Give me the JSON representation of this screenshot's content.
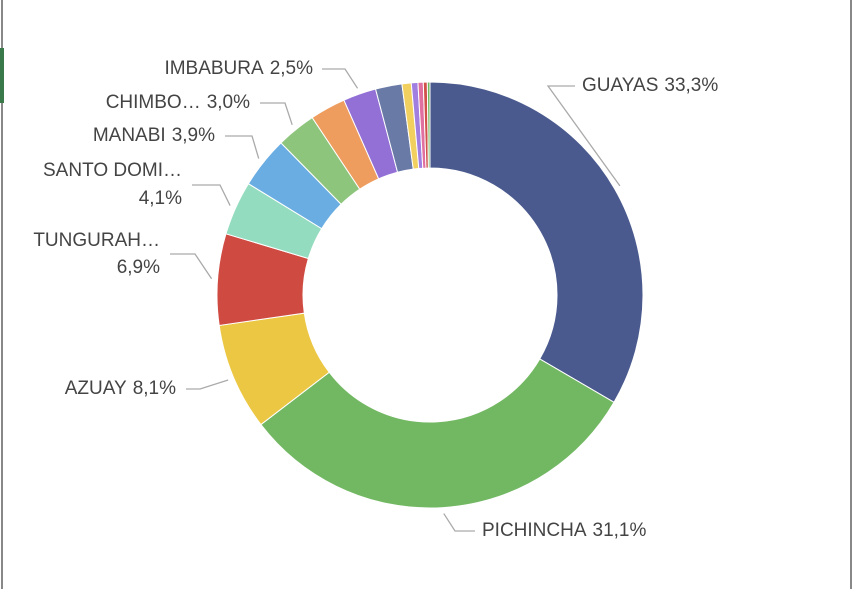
{
  "chart_data": {
    "type": "donut",
    "categories": [
      "GUAYAS",
      "PICHINCHA",
      "AZUAY",
      "TUNGURAH…",
      "SANTO DOMI…",
      "MANABI",
      "CHIMBO…",
      null,
      "IMBABURA",
      null,
      null,
      null,
      null,
      null,
      null
    ],
    "values": [
      33.3,
      31.1,
      8.1,
      6.9,
      4.1,
      3.9,
      3.0,
      2.7,
      2.5,
      2.0,
      0.7,
      0.5,
      0.4,
      0.3,
      0.2
    ],
    "value_labels": [
      "33,3%",
      "31,1%",
      "8,1%",
      "6,9%",
      "4,1%",
      "3,9%",
      "3,0%",
      null,
      "2,5%",
      null,
      null,
      null,
      null,
      null,
      null
    ],
    "colors": [
      "#4a5a8e",
      "#72b862",
      "#ecc744",
      "#cf4a41",
      "#93dcbf",
      "#6aade2",
      "#8ec57c",
      "#ee9d5e",
      "#9370d6",
      "#6a7aa6",
      "#f2d060",
      "#a17fe0",
      "#e070a0",
      "#d0504a",
      "#72b862"
    ]
  }
}
